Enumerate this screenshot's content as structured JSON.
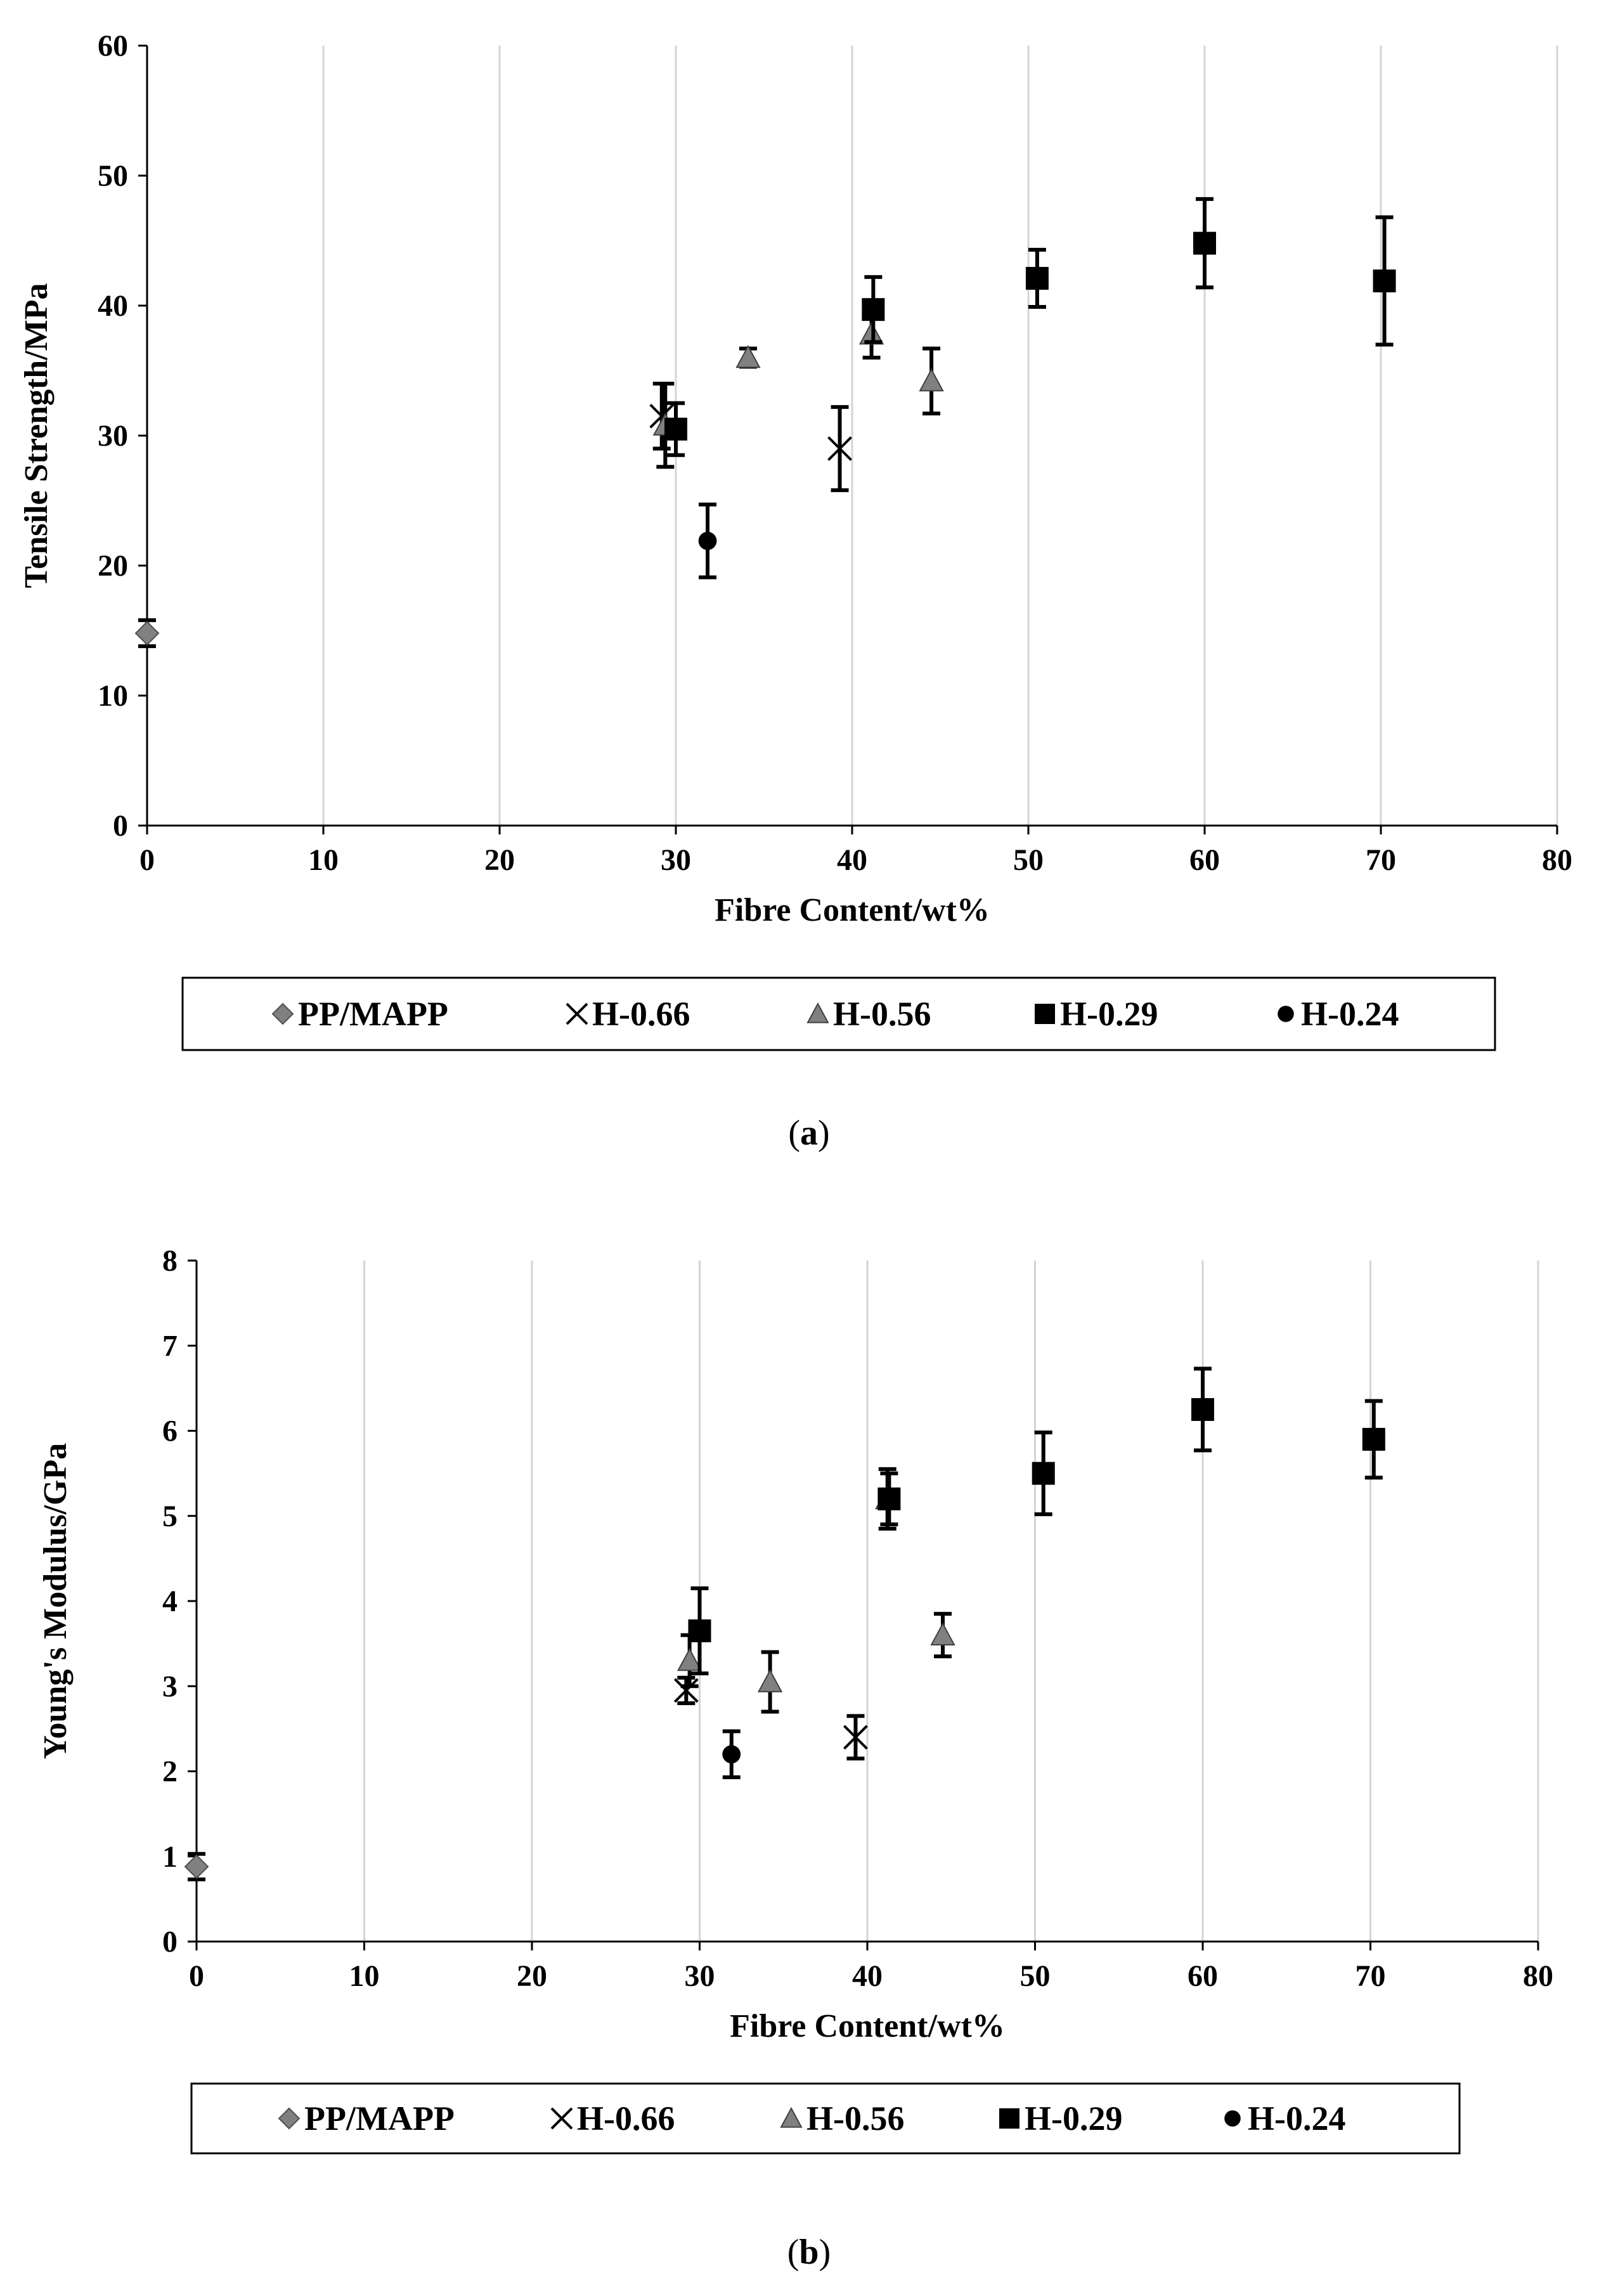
{
  "chart_data": [
    {
      "type": "scatter",
      "panel": "a",
      "caption_letter": "a",
      "xlabel": "Fibre Content/wt%",
      "ylabel": "Tensile Strength/MPa",
      "xlim": [
        0,
        80
      ],
      "ylim": [
        0,
        60
      ],
      "xticks": [
        0,
        10,
        20,
        30,
        40,
        50,
        60,
        70,
        80
      ],
      "yticks": [
        0,
        10,
        20,
        30,
        40,
        50,
        60
      ],
      "grid": "vertical",
      "legend_position": "bottom",
      "series": [
        {
          "name": "PP/MAPP",
          "marker": "diamond",
          "color": "#808080",
          "points": [
            {
              "x": 0,
              "y": 14.8,
              "err": 1.0
            }
          ]
        },
        {
          "name": "H-0.66",
          "marker": "x",
          "color": "#000000",
          "points": [
            {
              "x": 29.2,
              "y": 31.5,
              "err": 2.5
            },
            {
              "x": 39.3,
              "y": 29.0,
              "err": 3.2
            }
          ]
        },
        {
          "name": "H-0.56",
          "marker": "triangle",
          "color": "#808080",
          "points": [
            {
              "x": 29.4,
              "y": 30.8,
              "err": 3.2
            },
            {
              "x": 34.1,
              "y": 36.0,
              "err": 0.7
            },
            {
              "x": 41.1,
              "y": 37.8,
              "err": 1.8
            },
            {
              "x": 44.5,
              "y": 34.2,
              "err": 2.5
            }
          ]
        },
        {
          "name": "H-0.29",
          "marker": "square",
          "color": "#000000",
          "points": [
            {
              "x": 30.0,
              "y": 30.5,
              "err": 2.0
            },
            {
              "x": 41.2,
              "y": 39.7,
              "err": 2.5
            },
            {
              "x": 50.5,
              "y": 42.1,
              "err": 2.2
            },
            {
              "x": 60.0,
              "y": 44.8,
              "err": 3.4
            },
            {
              "x": 70.2,
              "y": 41.9,
              "err": 4.9
            }
          ]
        },
        {
          "name": "H-0.24",
          "marker": "circle",
          "color": "#000000",
          "points": [
            {
              "x": 31.8,
              "y": 21.9,
              "err": 2.8
            }
          ]
        }
      ]
    },
    {
      "type": "scatter",
      "panel": "b",
      "caption_letter": "b",
      "xlabel": "Fibre Content/wt%",
      "ylabel": "Young's Modulus/GPa",
      "xlim": [
        0,
        80
      ],
      "ylim": [
        0,
        8
      ],
      "xticks": [
        0,
        10,
        20,
        30,
        40,
        50,
        60,
        70,
        80
      ],
      "yticks": [
        0,
        1,
        2,
        3,
        4,
        5,
        6,
        7,
        8
      ],
      "grid": "vertical",
      "legend_position": "bottom",
      "series": [
        {
          "name": "PP/MAPP",
          "marker": "diamond",
          "color": "#808080",
          "points": [
            {
              "x": 0,
              "y": 0.88,
              "err": 0.15
            }
          ]
        },
        {
          "name": "H-0.66",
          "marker": "x",
          "color": "#000000",
          "points": [
            {
              "x": 29.2,
              "y": 2.95,
              "err": 0.15
            },
            {
              "x": 39.3,
              "y": 2.4,
              "err": 0.25
            }
          ]
        },
        {
          "name": "H-0.56",
          "marker": "triangle",
          "color": "#808080",
          "points": [
            {
              "x": 29.4,
              "y": 3.3,
              "err": 0.3
            },
            {
              "x": 34.2,
              "y": 3.05,
              "err": 0.35
            },
            {
              "x": 41.2,
              "y": 5.2,
              "err": 0.35
            },
            {
              "x": 44.5,
              "y": 3.6,
              "err": 0.25
            }
          ]
        },
        {
          "name": "H-0.29",
          "marker": "square",
          "color": "#000000",
          "points": [
            {
              "x": 30.0,
              "y": 3.65,
              "err": 0.5
            },
            {
              "x": 41.3,
              "y": 5.2,
              "err": 0.3
            },
            {
              "x": 50.5,
              "y": 5.5,
              "err": 0.48
            },
            {
              "x": 60.0,
              "y": 6.25,
              "err": 0.48
            },
            {
              "x": 70.2,
              "y": 5.9,
              "err": 0.45
            }
          ]
        },
        {
          "name": "H-0.24",
          "marker": "circle",
          "color": "#000000",
          "points": [
            {
              "x": 31.9,
              "y": 2.2,
              "err": 0.27
            }
          ]
        }
      ]
    }
  ]
}
